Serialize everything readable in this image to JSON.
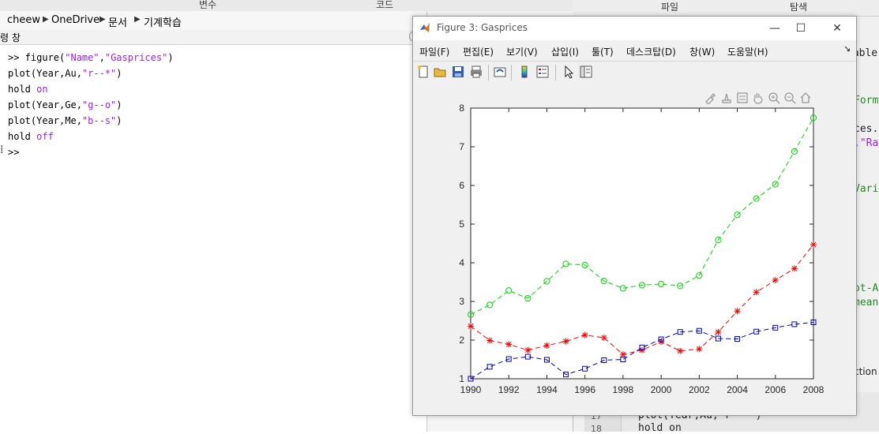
{
  "top_strip": {
    "variables_label": "변수",
    "code_label": "코드"
  },
  "breadcrumb": {
    "items": [
      "cheew",
      "OneDrive",
      "문서",
      "기계학습"
    ]
  },
  "command_window": {
    "title": "령 창",
    "lines": [
      {
        "prefix": ">> figure(",
        "s1": "\"Name\"",
        "mid": ",",
        "s2": "\"Gasprices\"",
        "suffix": ")"
      },
      {
        "prefix": "plot(Year,Au,",
        "s1": "\"r--*\"",
        "mid": "",
        "s2": "",
        "suffix": ")"
      },
      {
        "prefix": "hold ",
        "s1": "on",
        "mid": "",
        "s2": "",
        "suffix": ""
      },
      {
        "prefix": "plot(Year,Ge,",
        "s1": "\"g--o\"",
        "mid": "",
        "s2": "",
        "suffix": ")"
      },
      {
        "prefix": "plot(Year,Me,",
        "s1": "\"b--s\"",
        "mid": "",
        "s2": "",
        "suffix": ")"
      },
      {
        "prefix": "hold ",
        "s1": "off",
        "mid": "",
        "s2": "",
        "suffix": ""
      },
      {
        "prefix": ">>",
        "s1": "",
        "mid": "",
        "s2": "",
        "suffix": ""
      }
    ]
  },
  "right_panel": {
    "file_label": "파일",
    "explore_label": "탐색",
    "fragments": {
      "table": "table",
      "forma": "Forma",
      "ces": "ces.",
      "ra": ",\"Ra",
      "varia": "Varia",
      "ota": "ot-A-",
      "mean": "mean",
      "ction": "ction"
    },
    "editor": {
      "line17": "17",
      "line18": "18",
      "code17": "plot(Year,Au,\"r--*\")",
      "code18": "hold on"
    }
  },
  "figure_window": {
    "title": "Figure 3: Gasprices",
    "minimize": "—",
    "maximize": "☐",
    "close": "✕",
    "menu": [
      "파일(F)",
      "편집(E)",
      "보기(V)",
      "삽입(I)",
      "툴(T)",
      "데스크탑(D)",
      "창(W)",
      "도움말(H)"
    ],
    "menu_arrow": "↘",
    "toolbar_icons": [
      "new-figure-icon",
      "open-icon",
      "save-icon",
      "print-icon",
      "link-icon",
      "colorbar-icon",
      "legend-icon",
      "pointer-icon",
      "property-editor-icon"
    ],
    "axes_toolbar_icons": [
      "brush-icon",
      "data-tip-icon",
      "pan-icon",
      "zoom-in-icon",
      "zoom-out-icon",
      "home-icon"
    ]
  },
  "chart_data": {
    "type": "line",
    "title": "",
    "xlabel": "",
    "ylabel": "",
    "xlim": [
      1990,
      2008
    ],
    "ylim": [
      1,
      8
    ],
    "xticks": [
      1990,
      1992,
      1994,
      1996,
      1998,
      2000,
      2002,
      2004,
      2006,
      2008
    ],
    "yticks": [
      1,
      2,
      3,
      4,
      5,
      6,
      7,
      8
    ],
    "grid": false,
    "x": [
      1990,
      1991,
      1992,
      1993,
      1994,
      1995,
      1996,
      1997,
      1998,
      1999,
      2000,
      2001,
      2002,
      2003,
      2004,
      2005,
      2006,
      2007,
      2008
    ],
    "series": [
      {
        "color": "#ff0000",
        "marker": "star",
        "line": "dashed",
        "values": [
          2.36,
          1.99,
          1.89,
          1.74,
          1.86,
          1.97,
          2.13,
          2.06,
          1.63,
          1.74,
          1.96,
          1.72,
          1.77,
          2.21,
          2.75,
          3.24,
          3.55,
          3.85,
          4.47
        ]
      },
      {
        "color": "#00dd00",
        "marker": "circle",
        "line": "dashed",
        "values": [
          2.66,
          2.91,
          3.28,
          3.08,
          3.52,
          3.97,
          3.94,
          3.53,
          3.34,
          3.42,
          3.45,
          3.4,
          3.67,
          4.59,
          5.24,
          5.66,
          6.03,
          6.88,
          7.75
        ]
      },
      {
        "color": "#0000cc",
        "marker": "square",
        "line": "dashed",
        "values": [
          1.0,
          1.31,
          1.51,
          1.57,
          1.49,
          1.11,
          1.26,
          1.48,
          1.5,
          1.81,
          2.02,
          2.21,
          2.24,
          2.04,
          2.03,
          2.22,
          2.32,
          2.41,
          2.46
        ]
      }
    ]
  }
}
